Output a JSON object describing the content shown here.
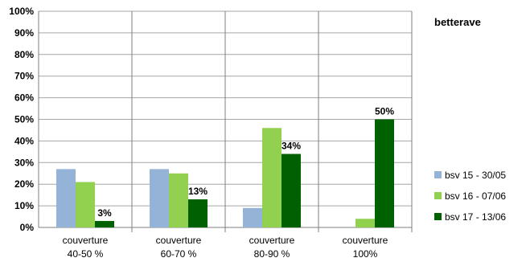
{
  "chart_data": {
    "type": "bar",
    "title": "betterave",
    "xlabel": "",
    "ylabel": "",
    "ylim": [
      0,
      100
    ],
    "yticks": [
      "0%",
      "10%",
      "20%",
      "30%",
      "40%",
      "50%",
      "60%",
      "70%",
      "80%",
      "90%",
      "100%"
    ],
    "grid": true,
    "legend_position": "right",
    "categories": [
      [
        "couverture",
        "40-50 %"
      ],
      [
        "couverture",
        "60-70 %"
      ],
      [
        "couverture",
        "80-90 %"
      ],
      [
        "couverture",
        "100%"
      ]
    ],
    "series": [
      {
        "name": "bsv 15 - 30/05",
        "color": "#95b3d7",
        "values": [
          27,
          27,
          9,
          0
        ]
      },
      {
        "name": "bsv 16 - 07/06",
        "color": "#92d050",
        "values": [
          21,
          25,
          46,
          4
        ]
      },
      {
        "name": "bsv 17 - 13/06",
        "color": "#006100",
        "values": [
          3,
          13,
          34,
          50
        ]
      }
    ],
    "data_labels": [
      {
        "series": 2,
        "category": 0,
        "text": "3%"
      },
      {
        "series": 2,
        "category": 1,
        "text": "13%"
      },
      {
        "series": 2,
        "category": 2,
        "text": "34%"
      },
      {
        "series": 2,
        "category": 3,
        "text": "50%"
      }
    ]
  }
}
